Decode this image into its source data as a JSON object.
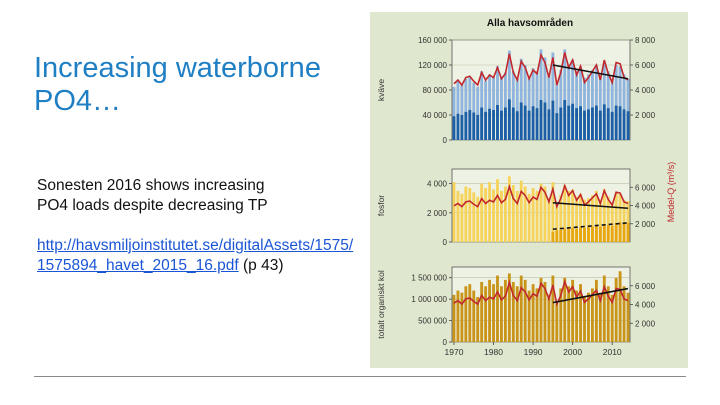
{
  "slide": {
    "title": "Increasing waterborne PO4…",
    "text_line1": "Sonesten 2016 shows increasing",
    "text_line2": "PO4 loads despite decreasing TP",
    "link_text": "http://havsmiljoinstitutet.se/digitalAssets/1575/1575894_havet_2015_16.pdf",
    "link_suffix": " (p 43)"
  },
  "figure": {
    "title": "Alla havsområden",
    "right_axis_label": "Medel-Q (m³/s)",
    "colors": {
      "background": "#dfe7cf",
      "kvave_dark": "#1c5fa6",
      "kvave_light": "#8fb4de",
      "fosfor_dark": "#e8a60f",
      "fosfor_light": "#f6d35a",
      "kol": "#c89419",
      "flow": "#c0282d",
      "trend": "#111111"
    },
    "chart_data": [
      {
        "type": "bar",
        "panel": "kväve",
        "ylabel": "kväve",
        "ylim": [
          0,
          160000
        ],
        "y_ticks": [
          "0",
          "40 000",
          "80 000",
          "120 000",
          "160 000"
        ],
        "y2lim": [
          0,
          8000
        ],
        "y2_ticks": [
          "2 000",
          "4 000",
          "6 000",
          "8 000"
        ],
        "years": [
          1970,
          1971,
          1972,
          1973,
          1974,
          1975,
          1976,
          1977,
          1978,
          1979,
          1980,
          1981,
          1982,
          1983,
          1984,
          1985,
          1986,
          1987,
          1988,
          1989,
          1990,
          1991,
          1992,
          1993,
          1994,
          1995,
          1996,
          1997,
          1998,
          1999,
          2000,
          2001,
          2002,
          2003,
          2004,
          2005,
          2006,
          2007,
          2008,
          2009,
          2010,
          2011,
          2012,
          2013,
          2014
        ],
        "series": [
          {
            "values": [
              85000,
              95000,
              90000,
              98000,
              100000,
              92000,
              85000,
              110000,
              95000,
              105000,
              100000,
              118000,
              100000,
              108000,
              143000,
              110000,
              98000,
              130000,
              120000,
              100000,
              115000,
              110000,
              145000,
              132000,
              105000,
              140000,
              92000,
              112000,
              145000,
              120000,
              128000,
              110000,
              118000,
              100000,
              105000,
              112000,
              120000,
              100000,
              125000,
              110000,
              98000,
              120000,
              118000,
              105000,
              98000
            ]
          },
          {
            "values": [
              38000,
              42000,
              40000,
              45000,
              48000,
              44000,
              40000,
              52000,
              45000,
              50000,
              48000,
              56000,
              47000,
              52000,
              65000,
              52000,
              46000,
              60000,
              55000,
              47000,
              54000,
              51000,
              64000,
              60000,
              49000,
              63000,
              43000,
              52000,
              64000,
              55000,
              58000,
              51000,
              54000,
              47000,
              49000,
              52000,
              55000,
              47000,
              57000,
              51000,
              45000,
              55000,
              54000,
              49000,
              46000
            ]
          },
          {
            "values": [
              4500,
              4800,
              4400,
              5000,
              5100,
              4700,
              4400,
              5400,
              4800,
              5200,
              5000,
              5800,
              4900,
              5300,
              6900,
              5400,
              4800,
              6300,
              5800,
              4900,
              5600,
              5300,
              6800,
              6200,
              5000,
              6600,
              4400,
              5400,
              7000,
              5800,
              6400,
              5200,
              5900,
              4600,
              5000,
              5500,
              6000,
              4800,
              6400,
              5300,
              4600,
              6200,
              6100,
              5000,
              4800
            ]
          },
          {
            "trend_start": [
              1995,
              6000
            ],
            "trend_end": [
              2014,
              4900
            ]
          }
        ]
      },
      {
        "type": "bar",
        "panel": "fosfor",
        "ylabel": "fosfor",
        "ylim": [
          0,
          5000
        ],
        "y_ticks": [
          "0",
          "2 000",
          "4 000"
        ],
        "y2lim": [
          0,
          8000
        ],
        "y2_ticks": [
          "2 000",
          "4 000",
          "6 000"
        ],
        "series": [
          {
            "values": [
              4100,
              3500,
              3300,
              3800,
              3700,
              3400,
              3100,
              4000,
              3700,
              4100,
              3600,
              4300,
              3500,
              3800,
              4500,
              3900,
              3500,
              4200,
              3800,
              3300,
              3700,
              3500,
              4000,
              3800,
              3000,
              4100,
              2500,
              3200,
              3900,
              3500,
              3600,
              3100,
              3300,
              2900,
              3000,
              3200,
              3500,
              2900,
              3600,
              3100,
              2700,
              3400,
              3300,
              2900,
              2800
            ]
          },
          {
            "values": [
              null,
              null,
              null,
              null,
              null,
              null,
              null,
              null,
              null,
              null,
              null,
              null,
              null,
              null,
              null,
              null,
              null,
              null,
              null,
              null,
              null,
              null,
              null,
              null,
              null,
              700,
              800,
              820,
              900,
              880,
              950,
              900,
              1000,
              950,
              1020,
              1050,
              1100,
              1050,
              1200,
              1150,
              1100,
              1300,
              1350,
              1250,
              1300
            ]
          },
          {
            "trend_start": [
              1995,
              4300
            ],
            "trend_end": [
              2014,
              3700
            ]
          },
          {
            "dashed_trend_start": [
              1995,
              1400
            ],
            "dashed_trend_end": [
              2014,
              2100
            ]
          }
        ]
      },
      {
        "type": "bar",
        "panel": "totalt organiskt kol",
        "ylabel": "totalt organiskt kol",
        "ylim": [
          0,
          1750000
        ],
        "y_ticks": [
          "0",
          "500 000",
          "1 000 000",
          "1 500 000"
        ],
        "y2lim": [
          0,
          8000
        ],
        "y2_ticks": [
          "2 000",
          "4 000",
          "6 000"
        ],
        "x_ticks": [
          "1970",
          "1980",
          "1990",
          "2000",
          "2010"
        ],
        "series": [
          {
            "values": [
              1100000,
              1200000,
              1150000,
              1300000,
              1350000,
              1200000,
              1050000,
              1400000,
              1300000,
              1450000,
              1350000,
              1550000,
              1300000,
              1450000,
              1600000,
              1400000,
              1300000,
              1550000,
              1450000,
              1200000,
              1350000,
              1250000,
              1500000,
              1400000,
              1100000,
              1550000,
              900000,
              1250000,
              1500000,
              1300000,
              1450000,
              1200000,
              1350000,
              1050000,
              1150000,
              1250000,
              1450000,
              1150000,
              1550000,
              1300000,
              1100000,
              1500000,
              1650000,
              1300000,
              1150000
            ]
          },
          {
            "trend_start": [
              1995,
              4200
            ],
            "trend_end": [
              2014,
              5700
            ]
          }
        ]
      }
    ]
  }
}
